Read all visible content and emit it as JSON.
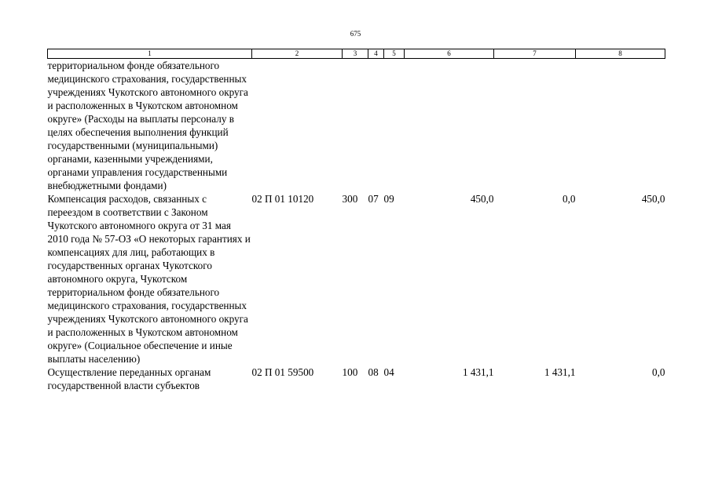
{
  "page": {
    "number": "675"
  },
  "table": {
    "headers": [
      "1",
      "2",
      "3",
      "4",
      "5",
      "6",
      "7",
      "8"
    ],
    "rows": [
      {
        "description": "территориальном фонде обязательного медицинского страхования, государственных учреждениях Чукотского автономного округа и расположенных в Чукотском автономном округе» (Расходы на выплаты персоналу в целях обеспечения выполнения функций государственными (муниципальными) органами, казенными учреждениями, органами управления государственными внебюджетными фондами)",
        "code": "",
        "col3": "",
        "col4": "",
        "col5": "",
        "col6": "",
        "col7": "",
        "col8": ""
      },
      {
        "description": "Компенсация расходов, связанных с переездом в соответствии с Законом Чукотского автономного округа от 31 мая 2010 года № 57-ОЗ «О некоторых гарантиях и компенсациях для лиц, работающих в государственных органах Чукотского автономного округа, Чукотском территориальном фонде обязательного медицинского страхования, государственных учреждениях Чукотского автономного округа и расположенных в Чукотском автономном округе» (Социальное обеспечение и иные выплаты населению)",
        "code": "02 П 01 10120",
        "col3": "300",
        "col4": "07",
        "col5": "09",
        "col6": "450,0",
        "col7": "0,0",
        "col8": "450,0"
      },
      {
        "description": "Осуществление переданных органам государственной власти субъектов",
        "code": "02 П 01 59500",
        "col3": "100",
        "col4": "08",
        "col5": "04",
        "col6": "1 431,1",
        "col7": "1 431,1",
        "col8": "0,0"
      }
    ]
  }
}
